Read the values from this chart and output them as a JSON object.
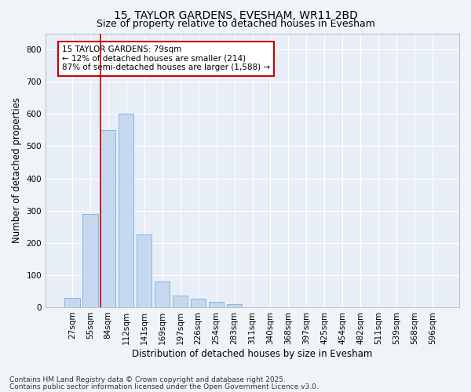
{
  "title": "15, TAYLOR GARDENS, EVESHAM, WR11 2BD",
  "subtitle": "Size of property relative to detached houses in Evesham",
  "xlabel": "Distribution of detached houses by size in Evesham",
  "ylabel": "Number of detached properties",
  "categories": [
    "27sqm",
    "55sqm",
    "84sqm",
    "112sqm",
    "141sqm",
    "169sqm",
    "197sqm",
    "226sqm",
    "254sqm",
    "283sqm",
    "311sqm",
    "340sqm",
    "368sqm",
    "397sqm",
    "425sqm",
    "454sqm",
    "482sqm",
    "511sqm",
    "539sqm",
    "568sqm",
    "596sqm"
  ],
  "values": [
    28,
    290,
    550,
    600,
    225,
    80,
    37,
    27,
    17,
    9,
    0,
    0,
    0,
    0,
    0,
    0,
    0,
    0,
    0,
    0,
    0
  ],
  "bar_color": "#c5d8f0",
  "bar_edge_color": "#7bafd4",
  "vline_color": "#cc0000",
  "annotation_text": "15 TAYLOR GARDENS: 79sqm\n← 12% of detached houses are smaller (214)\n87% of semi-detached houses are larger (1,588) →",
  "annotation_box_color": "#ffffff",
  "annotation_box_edge_color": "#cc0000",
  "ylim": [
    0,
    850
  ],
  "yticks": [
    0,
    100,
    200,
    300,
    400,
    500,
    600,
    700,
    800
  ],
  "fig_bg_color": "#f0f4f8",
  "plot_bg_color": "#e8eef8",
  "grid_color": "#ffffff",
  "footer_line1": "Contains HM Land Registry data © Crown copyright and database right 2025.",
  "footer_line2": "Contains public sector information licensed under the Open Government Licence v3.0.",
  "title_fontsize": 10,
  "subtitle_fontsize": 9,
  "tick_fontsize": 7.5,
  "label_fontsize": 8.5,
  "footer_fontsize": 6.5
}
